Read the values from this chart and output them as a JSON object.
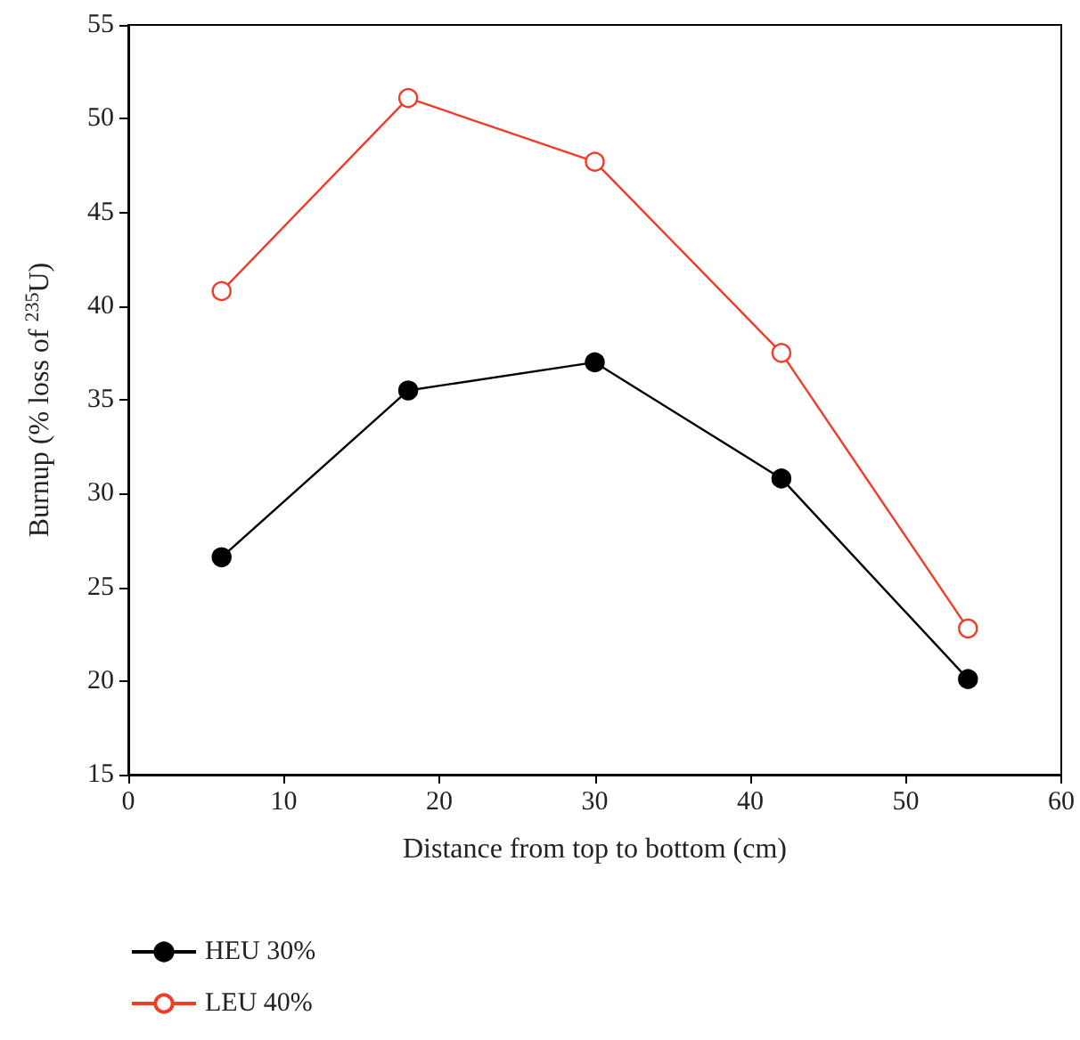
{
  "chart_data": {
    "type": "line",
    "xlabel": "Distance from top to bottom (cm)",
    "ylabel": "Burnup (% loss of $^{235}$U)",
    "x": [
      6,
      18,
      30,
      42,
      54
    ],
    "series": [
      {
        "name": "HEU 30%",
        "color": "#000000",
        "values": [
          26.6,
          35.5,
          37.0,
          30.8,
          20.1
        ],
        "marker": "circle"
      },
      {
        "name": "LEU 40%",
        "color": "#f03c28",
        "values": [
          40.8,
          51.1,
          47.7,
          37.5,
          22.8
        ],
        "marker": "circle"
      }
    ],
    "xlim": [
      0,
      60
    ],
    "xticks": [
      0,
      10,
      20,
      30,
      40,
      50,
      60
    ],
    "ylim": [
      15,
      55
    ],
    "yticks": [
      15,
      20,
      25,
      30,
      35,
      40,
      45,
      50,
      55
    ],
    "grid": false,
    "legend": "bottom left"
  }
}
